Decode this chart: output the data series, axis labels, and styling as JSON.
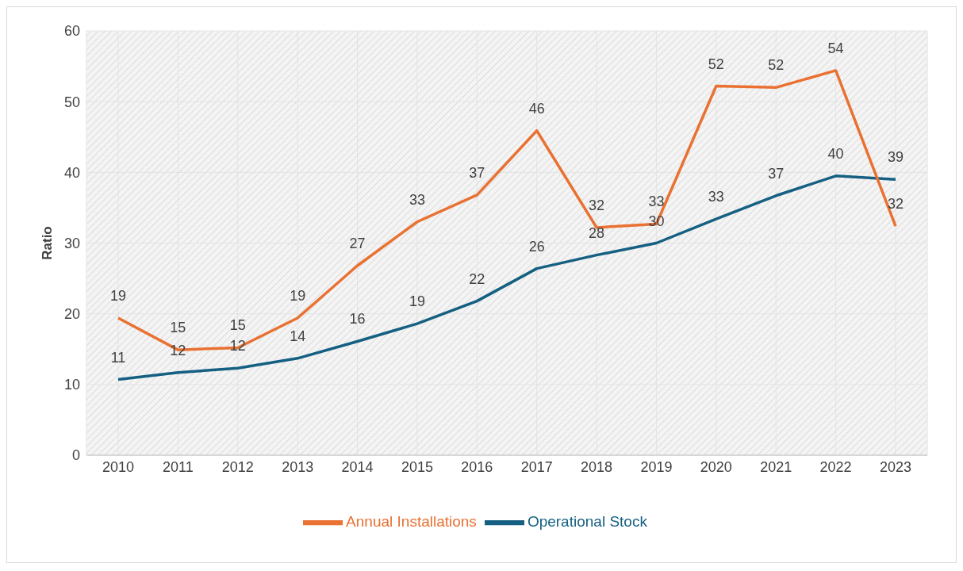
{
  "chart_data": {
    "type": "line",
    "ylabel": "Ratio",
    "categories": [
      "2010",
      "2011",
      "2012",
      "2013",
      "2014",
      "2015",
      "2016",
      "2017",
      "2018",
      "2019",
      "2020",
      "2021",
      "2022",
      "2023"
    ],
    "series": [
      {
        "name": "Operational Stock",
        "color": "#156082",
        "values": [
          10.7,
          11.7,
          12.3,
          13.7,
          16.1,
          18.6,
          21.8,
          26.4,
          28.3,
          30.0,
          33.4,
          36.7,
          39.5,
          39.0
        ],
        "value_labels": [
          "11",
          "12",
          "12",
          "14",
          "16",
          "19",
          "22",
          "26",
          "28",
          "30",
          "33",
          "37",
          "40",
          "39"
        ]
      },
      {
        "name": "Annual Installations",
        "color": "#e97132",
        "values": [
          19.4,
          14.9,
          15.2,
          19.4,
          26.8,
          33.0,
          36.8,
          45.9,
          32.2,
          32.7,
          52.2,
          52.0,
          54.4,
          32.4
        ],
        "value_labels": [
          "19",
          "15",
          "15",
          "19",
          "27",
          "33",
          "37",
          "46",
          "32",
          "33",
          "52",
          "52",
          "54",
          "32"
        ]
      }
    ],
    "ylim": [
      0,
      60
    ],
    "yticks": [
      0,
      10,
      20,
      30,
      40,
      50,
      60
    ],
    "grid": true,
    "legend": "bottom",
    "marker": "none",
    "line_style": "solid"
  }
}
